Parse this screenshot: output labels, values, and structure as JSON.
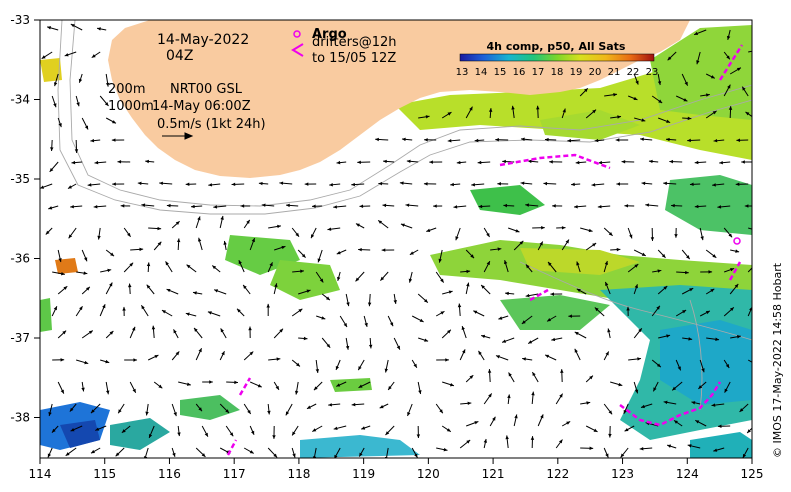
{
  "header": {
    "date": "14-May-2022",
    "hour": "04Z",
    "isobath_200": "200m",
    "isobath_1000": "1000m",
    "product": "NRT00 GSL",
    "time": "14-May 06:00Z",
    "scale_label": "0.5m/s (1kt 24h)"
  },
  "legend": {
    "argo_label": "Argo",
    "drifters_line1": "drifters@12h",
    "drifters_line2": "to 15/05 12Z",
    "colorbar_title": "4h comp, p50, All Sats",
    "colorbar_ticks": [
      "13",
      "14",
      "15",
      "16",
      "17",
      "18",
      "19",
      "20",
      "21",
      "22",
      "23"
    ]
  },
  "axes": {
    "lon_ticks": [
      "114",
      "115",
      "116",
      "117",
      "118",
      "119",
      "120",
      "121",
      "122",
      "123",
      "124",
      "125"
    ],
    "lat_ticks": [
      "-33",
      "-34",
      "-35",
      "-36",
      "-37",
      "-38"
    ]
  },
  "credit": "© IMOS 17-May-2022 14:58 Hobart",
  "colors": {
    "land": "#f9cba0",
    "drifter": "#ee00ee",
    "argo": "#ee00ee"
  }
}
